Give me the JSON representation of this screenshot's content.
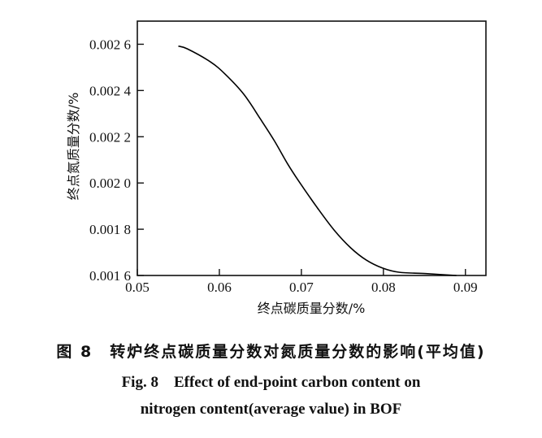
{
  "chart_data": {
    "type": "line",
    "title": "",
    "xlabel": "终点碳质量分数/%",
    "ylabel": "终点氮质量分数/%",
    "xlim": [
      0.05,
      0.0925
    ],
    "ylim": [
      0.0016,
      0.0027
    ],
    "xticks": [
      0.05,
      0.06,
      0.07,
      0.08,
      0.09
    ],
    "xtick_labels": [
      "0.05",
      "0.06",
      "0.07",
      "0.08",
      "0.09"
    ],
    "yticks": [
      0.0016,
      0.0018,
      0.002,
      0.0022,
      0.0024,
      0.0026
    ],
    "ytick_labels": [
      "0.001 6",
      "0.001 8",
      "0.002 0",
      "0.002 2",
      "0.002 4",
      "0.002 6"
    ],
    "grid": false,
    "series": [
      {
        "color": "#000000",
        "x": [
          0.055,
          0.0561,
          0.0589,
          0.0607,
          0.063,
          0.065,
          0.0667,
          0.0683,
          0.0697,
          0.072,
          0.074,
          0.076,
          0.0779,
          0.0799,
          0.0819,
          0.0852,
          0.0889
        ],
        "y": [
          0.002592,
          0.00258,
          0.002524,
          0.002471,
          0.002383,
          0.002277,
          0.002183,
          0.002084,
          0.002007,
          0.00189,
          0.001796,
          0.00172,
          0.001667,
          0.001632,
          0.001614,
          0.001608,
          0.0016
        ]
      }
    ]
  },
  "caption": {
    "cn": "图 8　转炉终点碳质量分数对氮质量分数的影响(平均值)",
    "en_line1": "Fig. 8　Effect of end-point carbon content on",
    "en_line2": "nitrogen content(average value) in BOF"
  }
}
